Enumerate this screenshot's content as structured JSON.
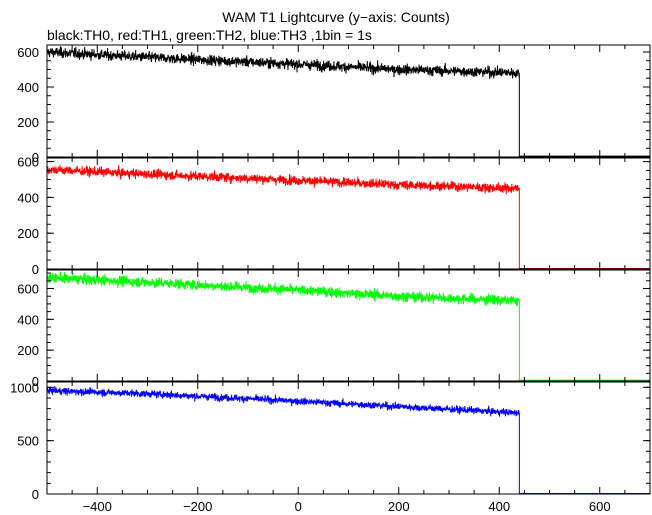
{
  "title": "WAM T1 Lightcurve (y−axis: Counts)",
  "subtitle": "black:TH0, red:TH1, green:TH2, blue:TH3 ,1bin = 1s",
  "chart_data": {
    "type": "line",
    "x_range": [
      -500,
      700
    ],
    "x_ticks": [
      -400,
      -200,
      0,
      200,
      400,
      600
    ],
    "x_tick_labels": [
      "−400",
      "−200",
      "0",
      "200",
      "400",
      "600"
    ],
    "x_minor_step": 50,
    "step_x": 440,
    "grid": false,
    "panels": [
      {
        "name": "TH0",
        "color": "#000000",
        "ylim": [
          0,
          640
        ],
        "y_ticks": [
          0,
          200,
          400,
          600
        ],
        "y_minor_step": 50,
        "y_tick_labels": [
          "0",
          "200",
          "400",
          "600"
        ],
        "trend": [
          [
            -500,
            600
          ],
          [
            -300,
            570
          ],
          [
            0,
            530
          ],
          [
            200,
            500
          ],
          [
            440,
            480
          ],
          [
            700,
            5
          ]
        ],
        "noise": 25
      },
      {
        "name": "TH1",
        "color": "#ff0000",
        "ylim": [
          0,
          620
        ],
        "y_ticks": [
          0,
          200,
          400,
          600
        ],
        "y_minor_step": 50,
        "y_tick_labels": [
          "0",
          "200",
          "400",
          "600"
        ],
        "trend": [
          [
            -500,
            555
          ],
          [
            -300,
            530
          ],
          [
            0,
            495
          ],
          [
            200,
            470
          ],
          [
            440,
            450
          ],
          [
            700,
            3
          ]
        ],
        "noise": 22
      },
      {
        "name": "TH2",
        "color": "#00ff00",
        "ylim": [
          0,
          720
        ],
        "y_ticks": [
          0,
          200,
          400,
          600
        ],
        "y_minor_step": 50,
        "y_tick_labels": [
          "0",
          "200",
          "400",
          "600"
        ],
        "trend": [
          [
            -500,
            670
          ],
          [
            -300,
            640
          ],
          [
            0,
            590
          ],
          [
            200,
            550
          ],
          [
            440,
            520
          ],
          [
            700,
            5
          ]
        ],
        "noise": 28
      },
      {
        "name": "TH3",
        "color": "#0000ff",
        "ylim": [
          0,
          1050
        ],
        "y_ticks": [
          0,
          500,
          1000
        ],
        "y_minor_step": 100,
        "y_tick_labels": [
          "0",
          "500",
          "1000"
        ],
        "trend": [
          [
            -500,
            970
          ],
          [
            -300,
            940
          ],
          [
            0,
            870
          ],
          [
            200,
            820
          ],
          [
            440,
            760
          ],
          [
            700,
            5
          ]
        ],
        "noise": 28
      }
    ]
  }
}
